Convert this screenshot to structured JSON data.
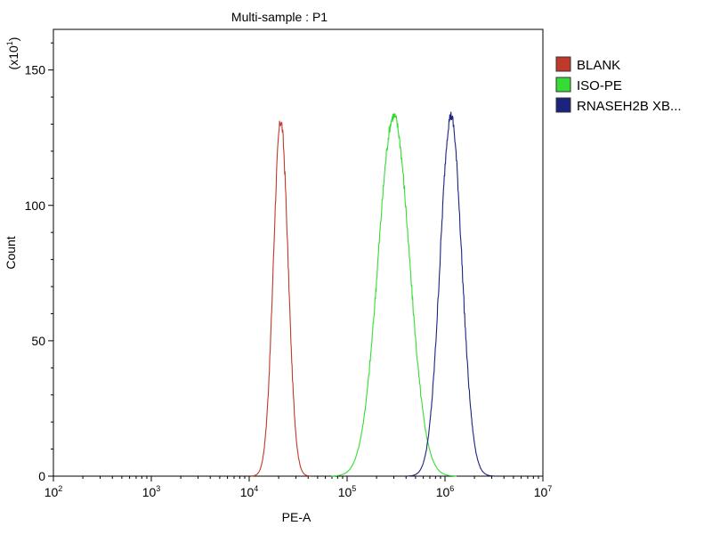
{
  "chart_data": {
    "type": "line",
    "title": "Multi-sample : P1",
    "xlabel": "PE-A",
    "ylabel": "Count",
    "y_multiplier": "(x10",
    "y_multiplier_exp": "1",
    "y_multiplier_close": ")",
    "x_scale": "log",
    "xlim": [
      100,
      10000000
    ],
    "ylim": [
      0,
      165
    ],
    "x_ticks": [
      {
        "base": "10",
        "exp": "2",
        "value": 100
      },
      {
        "base": "10",
        "exp": "3",
        "value": 1000
      },
      {
        "base": "10",
        "exp": "4",
        "value": 10000
      },
      {
        "base": "10",
        "exp": "5",
        "value": 100000
      },
      {
        "base": "10",
        "exp": "6",
        "value": 1000000
      },
      {
        "base": "10",
        "exp": "7",
        "value": 10000000
      }
    ],
    "y_ticks": [
      "0",
      "50",
      "100",
      "150"
    ],
    "legend_position": "right",
    "series": [
      {
        "name": "BLANK",
        "color": "#c0392b",
        "peak_x": 21000,
        "peak_y": 131,
        "sigma_decades": 0.075
      },
      {
        "name": "ISO-PE",
        "color": "#33dd33",
        "peak_x": 300000,
        "peak_y": 133,
        "sigma_decades": 0.16
      },
      {
        "name": "RNASEH2B XB...",
        "color": "#1a237e",
        "peak_x": 1150000,
        "peak_y": 133,
        "sigma_decades": 0.11
      }
    ]
  }
}
